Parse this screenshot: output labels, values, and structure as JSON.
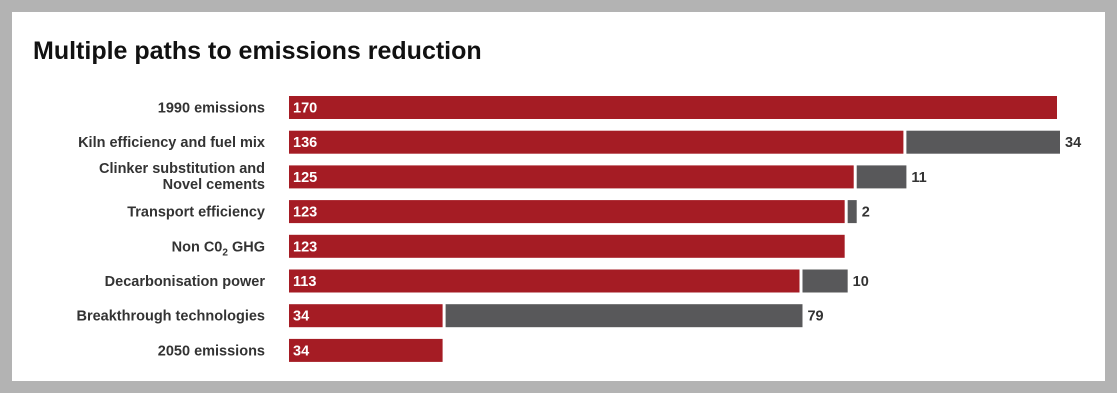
{
  "title": "Multiple paths to emissions reduction",
  "colors": {
    "primary": "#a51c24",
    "secondary": "#58585a",
    "frame": "#b3b3b3"
  },
  "chart_data": {
    "type": "bar",
    "orientation": "horizontal",
    "stacked": true,
    "title": "Multiple paths to emissions reduction",
    "categories": [
      [
        "1990 emissions"
      ],
      [
        "Kiln efficiency and fuel mix"
      ],
      [
        "Clinker substitution and",
        "Novel cements"
      ],
      [
        "Transport efficiency"
      ],
      [
        {
          "text": "Non C0"
        },
        {
          "text": "2",
          "sub": true
        },
        {
          "text": " GHG"
        }
      ],
      [
        "Decarbonisation power"
      ],
      [
        "Breakthrough technologies"
      ],
      [
        "2050 emissions"
      ]
    ],
    "series": [
      {
        "values": [
          170,
          136,
          125,
          123,
          123,
          113,
          34,
          34
        ],
        "color": "#a51c24"
      },
      {
        "values": [
          null,
          34,
          11,
          2,
          null,
          10,
          79,
          null
        ],
        "color": "#58585a"
      }
    ],
    "xlim": [
      0,
      170
    ],
    "grid": false,
    "legend": "none"
  }
}
